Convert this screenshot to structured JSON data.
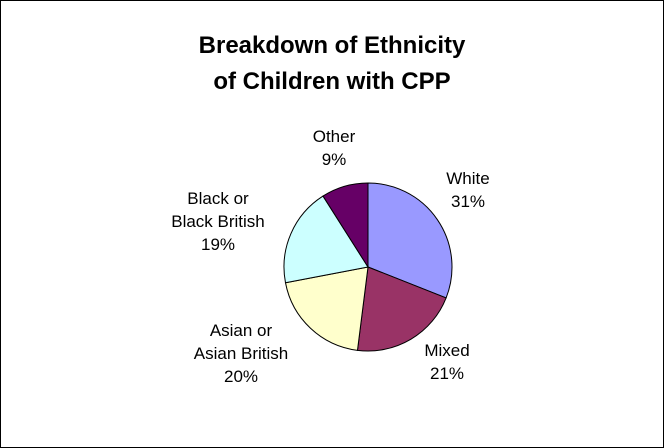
{
  "chart_data": {
    "type": "pie",
    "title_lines": [
      "Breakdown of Ethnicity",
      "of Children with CPP"
    ],
    "legend": "none",
    "slices": [
      {
        "name": "White",
        "value": 31,
        "label_lines": [
          "White",
          "31%"
        ],
        "color": "#9999FF"
      },
      {
        "name": "Mixed",
        "value": 21,
        "label_lines": [
          "Mixed",
          "21%"
        ],
        "color": "#993366"
      },
      {
        "name": "Asian or Asian British",
        "value": 20,
        "label_lines": [
          "Asian or",
          "Asian British",
          "20%"
        ],
        "color": "#FFFFCC"
      },
      {
        "name": "Black or Black British",
        "value": 19,
        "label_lines": [
          "Black or",
          "Black British",
          "19%"
        ],
        "color": "#CCFFFF"
      },
      {
        "name": "Other",
        "value": 9,
        "label_lines": [
          "Other",
          "9%"
        ],
        "color": "#660066"
      }
    ]
  }
}
